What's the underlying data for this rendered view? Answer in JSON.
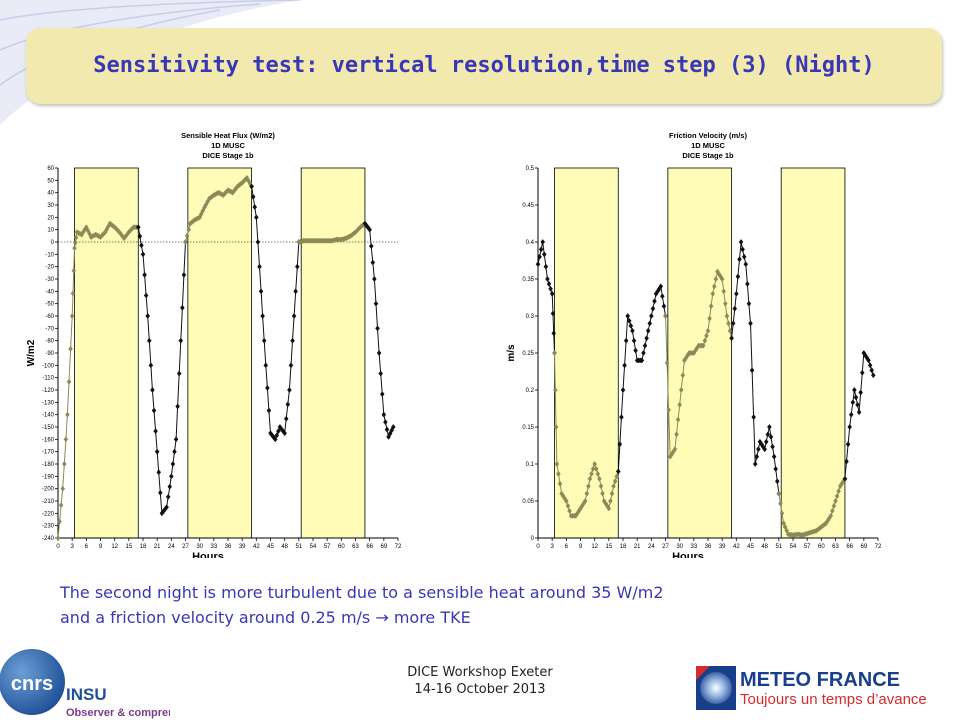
{
  "slide": {
    "title": "Sensitivity test: vertical resolution,time step (3) (Night)",
    "description_line1": "The second night is more turbulent due to a sensible heat around 35 W/m2",
    "description_line2": "and a friction velocity around 0.25 m/s  → more TKE",
    "footer_line1": "DICE Workshop Exeter",
    "footer_line2": "14-16 October 2013"
  },
  "logos": {
    "cnrs_text": "cnrs",
    "insu_text": "INSU",
    "insu_tagline": "Observer & comprendre",
    "meteo_name": "METEO FRANCE",
    "meteo_tagline": "Toujours un temps d’avance"
  },
  "colors": {
    "title_bg": "#f1e9ad",
    "title_text": "#3a37b5",
    "night_shading": "#fffcb8",
    "night_series": "#8c8a57",
    "day_series": "#111111"
  },
  "chart_data": [
    {
      "type": "line",
      "title_lines": [
        "Sensible Heat Flux (W/m2)",
        "1D MUSC",
        "DICE Stage 1b"
      ],
      "xlabel": "Hours",
      "ylabel": "W/m2",
      "xlim": [
        0,
        72
      ],
      "ylim": [
        -240,
        60
      ],
      "xticks": [
        0,
        3,
        6,
        9,
        12,
        15,
        18,
        21,
        24,
        27,
        30,
        33,
        36,
        39,
        42,
        45,
        48,
        51,
        54,
        57,
        60,
        63,
        66,
        69,
        72
      ],
      "yticks": [
        60,
        50,
        40,
        30,
        20,
        10,
        0,
        -10,
        -20,
        -30,
        -40,
        -50,
        -60,
        -70,
        -80,
        -90,
        -100,
        -110,
        -120,
        -130,
        -140,
        -150,
        -160,
        -170,
        -180,
        -190,
        -200,
        -210,
        -220,
        -230,
        -240
      ],
      "night_intervals": [
        [
          3.5,
          17
        ],
        [
          27.5,
          41
        ],
        [
          51.5,
          65
        ]
      ],
      "zero_line": true,
      "series": [
        {
          "x": [
            0,
            1,
            2,
            3,
            3.5,
            4,
            5,
            6,
            7,
            8,
            9,
            10,
            11,
            12,
            13,
            14,
            15,
            16,
            17
          ],
          "y": [
            -240,
            -200,
            -140,
            -60,
            -5,
            8,
            6,
            12,
            4,
            6,
            4,
            8,
            15,
            12,
            8,
            3,
            8,
            12,
            12
          ],
          "style": "night"
        },
        {
          "x": [
            17,
            18,
            19,
            20,
            21,
            22,
            23,
            24,
            25,
            26,
            27
          ],
          "y": [
            12,
            -10,
            -60,
            -120,
            -170,
            -220,
            -215,
            -190,
            -160,
            -80,
            0
          ],
          "style": "day"
        },
        {
          "x": [
            27,
            28,
            29,
            30,
            31,
            32,
            33,
            34,
            35,
            36,
            37,
            38,
            39,
            40,
            41
          ],
          "y": [
            0,
            15,
            18,
            20,
            28,
            35,
            38,
            40,
            38,
            42,
            40,
            45,
            48,
            52,
            45
          ],
          "style": "night"
        },
        {
          "x": [
            41,
            42,
            43,
            44,
            45,
            46,
            47,
            48,
            49,
            50,
            51
          ],
          "y": [
            45,
            20,
            -40,
            -100,
            -155,
            -160,
            -150,
            -155,
            -120,
            -60,
            0
          ],
          "style": "day"
        },
        {
          "x": [
            51,
            52,
            53,
            54,
            55,
            56,
            57,
            58,
            59,
            60,
            61,
            62,
            63,
            64,
            65
          ],
          "y": [
            0,
            1,
            1,
            1,
            1,
            1,
            1,
            1,
            2,
            2,
            3,
            5,
            8,
            12,
            15
          ],
          "style": "night"
        },
        {
          "x": [
            65,
            66,
            67,
            68,
            69,
            70,
            71
          ],
          "y": [
            15,
            10,
            -30,
            -90,
            -140,
            -158,
            -150
          ],
          "style": "day"
        }
      ]
    },
    {
      "type": "line",
      "title_lines": [
        "Friction Velocity (m/s)",
        "1D MUSC",
        "DICE Stage 1b"
      ],
      "xlabel": "Hours",
      "ylabel": "m/s",
      "xlim": [
        0,
        72
      ],
      "ylim": [
        0,
        0.5
      ],
      "xticks": [
        0,
        3,
        6,
        9,
        12,
        15,
        18,
        21,
        24,
        27,
        30,
        33,
        36,
        39,
        42,
        45,
        48,
        51,
        54,
        57,
        60,
        63,
        66,
        69,
        72
      ],
      "yticks": [
        0.5,
        0.45,
        0.4,
        0.35,
        0.3,
        0.25,
        0.2,
        0.15,
        0.1,
        0.05,
        0
      ],
      "night_intervals": [
        [
          3.5,
          17
        ],
        [
          27.5,
          41
        ],
        [
          51.5,
          65
        ]
      ],
      "zero_line": false,
      "series": [
        {
          "x": [
            0,
            1,
            2,
            3,
            3.5
          ],
          "y": [
            0.37,
            0.4,
            0.35,
            0.33,
            0.25
          ],
          "style": "day"
        },
        {
          "x": [
            3.5,
            4,
            5,
            6,
            7,
            8,
            9,
            10,
            11,
            12,
            13,
            14,
            15,
            16,
            17
          ],
          "y": [
            0.25,
            0.1,
            0.06,
            0.05,
            0.03,
            0.03,
            0.04,
            0.05,
            0.08,
            0.1,
            0.08,
            0.05,
            0.04,
            0.07,
            0.09
          ],
          "style": "night"
        },
        {
          "x": [
            17,
            18,
            19,
            20,
            21,
            22,
            23,
            24,
            25,
            26,
            27
          ],
          "y": [
            0.09,
            0.2,
            0.3,
            0.28,
            0.24,
            0.24,
            0.27,
            0.3,
            0.33,
            0.34,
            0.3
          ],
          "style": "day"
        },
        {
          "x": [
            27,
            28,
            29,
            30,
            31,
            32,
            33,
            34,
            35,
            36,
            37,
            38,
            39,
            40,
            41
          ],
          "y": [
            0.3,
            0.11,
            0.12,
            0.18,
            0.24,
            0.25,
            0.25,
            0.26,
            0.26,
            0.28,
            0.33,
            0.36,
            0.35,
            0.3,
            0.27
          ],
          "style": "night"
        },
        {
          "x": [
            41,
            42,
            43,
            44,
            45,
            46,
            47,
            48,
            49,
            50,
            51
          ],
          "y": [
            0.27,
            0.33,
            0.4,
            0.37,
            0.29,
            0.1,
            0.13,
            0.12,
            0.15,
            0.11,
            0.06
          ],
          "style": "day"
        },
        {
          "x": [
            51,
            52,
            53,
            54,
            55,
            56,
            57,
            58,
            59,
            60,
            61,
            62,
            63,
            64,
            65
          ],
          "y": [
            0.06,
            0.02,
            0.005,
            0.004,
            0.005,
            0.004,
            0.006,
            0.008,
            0.01,
            0.015,
            0.02,
            0.03,
            0.05,
            0.07,
            0.08
          ],
          "style": "night"
        },
        {
          "x": [
            65,
            66,
            67,
            68,
            69,
            70,
            71
          ],
          "y": [
            0.08,
            0.15,
            0.2,
            0.17,
            0.25,
            0.24,
            0.22
          ],
          "style": "day"
        }
      ]
    }
  ]
}
